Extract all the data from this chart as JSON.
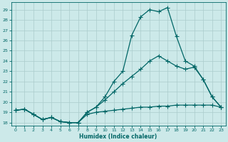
{
  "xlabel": "Humidex (Indice chaleur)",
  "bg_color": "#cce9e9",
  "grid_color": "#aacccc",
  "line_color": "#006666",
  "xlim": [
    -0.5,
    23.5
  ],
  "ylim": [
    17.7,
    29.7
  ],
  "xticks": [
    0,
    1,
    2,
    3,
    4,
    5,
    6,
    7,
    8,
    9,
    10,
    11,
    12,
    13,
    14,
    15,
    16,
    17,
    18,
    19,
    20,
    21,
    22,
    23
  ],
  "yticks": [
    18,
    19,
    20,
    21,
    22,
    23,
    24,
    25,
    26,
    27,
    28,
    29
  ],
  "line1_x": [
    0,
    1,
    2,
    3,
    4,
    5,
    6,
    7,
    8,
    9,
    10,
    11,
    12,
    13,
    14,
    15,
    16,
    17,
    18,
    19,
    20,
    21,
    22,
    23
  ],
  "line1_y": [
    19.2,
    19.3,
    18.8,
    18.3,
    18.5,
    18.1,
    18.0,
    18.0,
    18.8,
    19.0,
    19.1,
    19.2,
    19.3,
    19.4,
    19.5,
    19.5,
    19.6,
    19.6,
    19.7,
    19.7,
    19.7,
    19.7,
    19.7,
    19.5
  ],
  "line2_x": [
    0,
    1,
    2,
    3,
    4,
    5,
    6,
    7,
    8,
    9,
    10,
    11,
    12,
    13,
    14,
    15,
    16,
    17,
    18,
    19,
    20,
    21,
    22,
    23
  ],
  "line2_y": [
    19.2,
    19.3,
    18.8,
    18.3,
    18.5,
    18.1,
    18.0,
    18.0,
    19.0,
    19.5,
    20.2,
    21.0,
    21.8,
    22.5,
    23.2,
    24.0,
    24.5,
    24.0,
    23.5,
    23.2,
    23.4,
    22.2,
    20.5,
    19.5
  ],
  "line3_x": [
    0,
    1,
    2,
    3,
    4,
    5,
    6,
    7,
    8,
    9,
    10,
    11,
    12,
    13,
    14,
    15,
    16,
    17,
    18,
    19,
    20,
    21,
    22,
    23
  ],
  "line3_y": [
    19.2,
    19.3,
    18.8,
    18.3,
    18.5,
    18.1,
    18.0,
    18.0,
    19.0,
    19.5,
    20.5,
    22.0,
    23.0,
    26.5,
    28.3,
    29.0,
    28.8,
    29.2,
    26.4,
    24.0,
    23.5,
    22.2,
    20.5,
    19.5
  ]
}
